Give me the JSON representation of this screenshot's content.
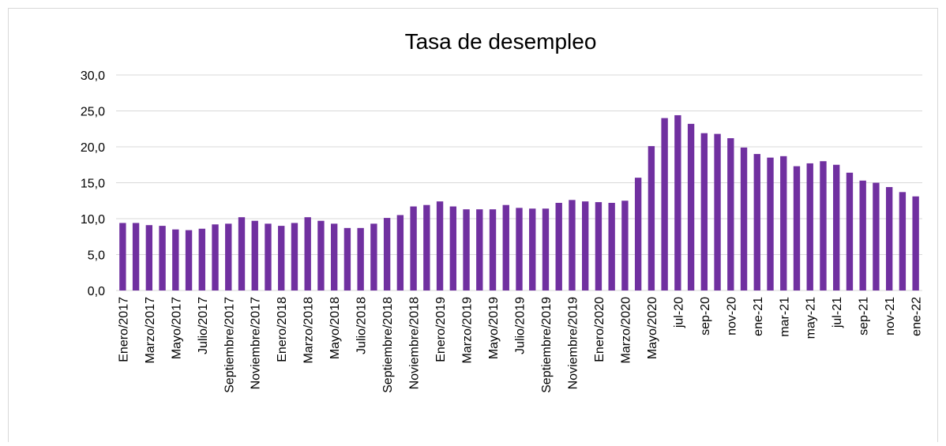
{
  "chart_data": {
    "type": "bar",
    "title": "Tasa de desempleo",
    "categories": [
      "Enero/2017",
      null,
      "Marzo/2017",
      null,
      "Mayo/2017",
      null,
      "Julio/2017",
      null,
      "Septiembre/2017",
      null,
      "Noviembre/2017",
      null,
      "Enero/2018",
      null,
      "Marzo/2018",
      null,
      "Mayo/2018",
      null,
      "Julio/2018",
      null,
      "Septiembre/2018",
      null,
      "Noviembre/2018",
      null,
      "Enero/2019",
      null,
      "Marzo/2019",
      null,
      "Mayo/2019",
      null,
      "Julio/2019",
      null,
      "Septiembre/2019",
      null,
      "Noviembre/2019",
      null,
      "Enero/2020",
      null,
      "Marzo/2020",
      null,
      "Mayo/2020",
      null,
      "jul-20",
      null,
      "sep-20",
      null,
      "nov-20",
      null,
      "ene-21",
      null,
      "mar-21",
      null,
      "may-21",
      null,
      "jul-21",
      null,
      "sep-21",
      null,
      "nov-21",
      null,
      "ene-22"
    ],
    "values": [
      9.4,
      9.4,
      9.1,
      9.0,
      8.5,
      8.4,
      8.6,
      9.2,
      9.3,
      10.2,
      9.7,
      9.3,
      9.0,
      9.4,
      10.2,
      9.7,
      9.3,
      8.7,
      8.7,
      9.3,
      10.1,
      10.5,
      11.7,
      11.9,
      12.4,
      11.7,
      11.3,
      11.3,
      11.3,
      11.9,
      11.5,
      11.4,
      11.4,
      12.2,
      12.6,
      12.4,
      12.3,
      12.2,
      12.5,
      15.7,
      20.1,
      24.0,
      24.4,
      23.2,
      21.9,
      21.8,
      21.2,
      19.9,
      19.0,
      18.5,
      18.7,
      17.3,
      17.7,
      18.0,
      17.5,
      16.4,
      15.3,
      15.0,
      14.4,
      13.7,
      13.1
    ],
    "color": "#7030a0",
    "ylim": [
      0,
      30
    ],
    "yticks": [
      {
        "value": 0,
        "label": "0,0"
      },
      {
        "value": 5,
        "label": "5,0"
      },
      {
        "value": 10,
        "label": "10,0"
      },
      {
        "value": 15,
        "label": "15,0"
      },
      {
        "value": 20,
        "label": "20,0"
      },
      {
        "value": 25,
        "label": "25,0"
      },
      {
        "value": 30,
        "label": "30,0"
      }
    ],
    "grid": true
  }
}
